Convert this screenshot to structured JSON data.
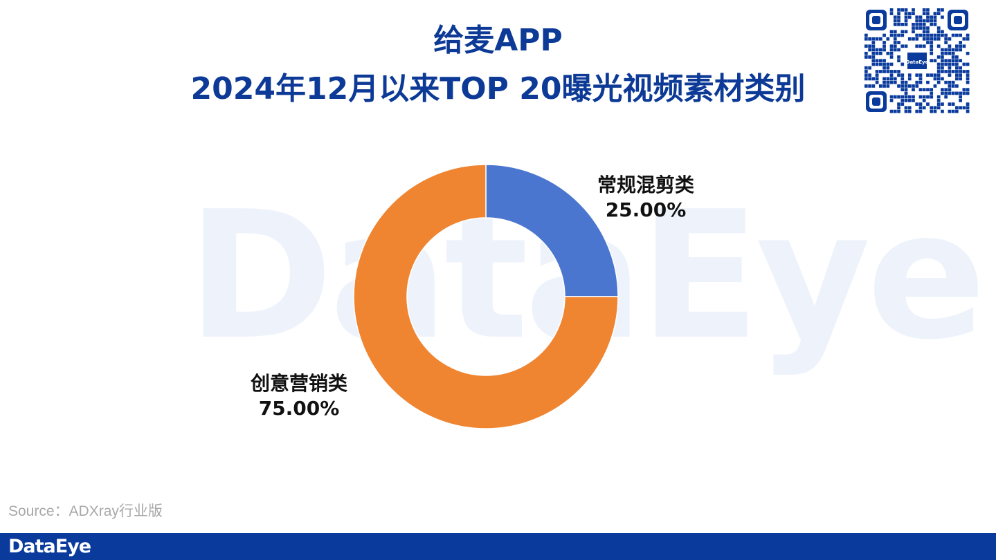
{
  "header": {
    "title_line1": "给麦APP",
    "title_line2": "2024年12月以来TOP 20曝光视频素材类别"
  },
  "watermark": {
    "text": "DataEye"
  },
  "qr_code": {
    "center_logo": "DataEye"
  },
  "chart_data": {
    "type": "pie",
    "donut": true,
    "title": "给麦APP 2024年12月以来TOP 20曝光视频素材类别",
    "slices": [
      {
        "label": "常规混剪类",
        "value": 25.0,
        "display": "25.00%",
        "color": "#4a76cf"
      },
      {
        "label": "创意营销类",
        "value": 75.0,
        "display": "75.00%",
        "color": "#ef8431"
      }
    ],
    "start_angle_deg": 0,
    "direction": "clockwise",
    "legend": "none"
  },
  "footer": {
    "source": "Source：ADXray行业版",
    "brand": "DataEye"
  },
  "colors": {
    "title": "#0c3a96",
    "footer_bar": "#0a3a9c",
    "watermark": "#eef3fb"
  }
}
